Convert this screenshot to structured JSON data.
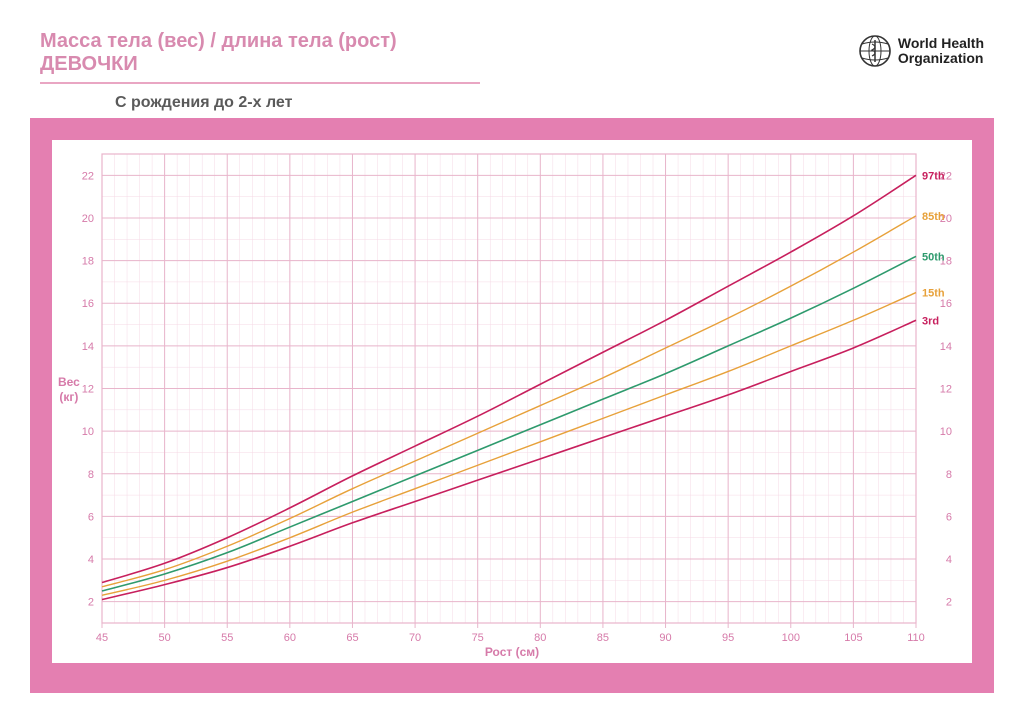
{
  "header": {
    "title": "Масса тела (вес) / длина тела (рост) ДЕВОЧКИ",
    "subtitle": "С рождения до 2-х лет",
    "org_line1": "World Health",
    "org_line2": "Organization"
  },
  "chart": {
    "type": "line",
    "background_color": "#ffffff",
    "frame_color": "#e47fb1",
    "grid_minor_color": "#f5d9e5",
    "grid_major_color": "#e8b5cb",
    "x": {
      "label": "Рост (см)",
      "min": 45,
      "max": 110,
      "major_step": 5,
      "minor_step": 1,
      "tick_color": "#d67aa9",
      "tick_fontsize": 11
    },
    "y": {
      "label_line1": "Вес",
      "label_line2": "(кг)",
      "min": 1,
      "max": 23,
      "major_step": 2,
      "major_start": 2,
      "minor_step": 1,
      "tick_color": "#d67aa9",
      "tick_fontsize": 11
    },
    "series": [
      {
        "name": "97th",
        "label": "97th",
        "color": "#c71f5d",
        "width": 1.6,
        "points": [
          [
            45,
            2.9
          ],
          [
            50,
            3.8
          ],
          [
            55,
            5.0
          ],
          [
            60,
            6.4
          ],
          [
            65,
            7.9
          ],
          [
            70,
            9.3
          ],
          [
            75,
            10.7
          ],
          [
            80,
            12.2
          ],
          [
            85,
            13.7
          ],
          [
            90,
            15.2
          ],
          [
            95,
            16.8
          ],
          [
            100,
            18.4
          ],
          [
            105,
            20.1
          ],
          [
            110,
            22.0
          ]
        ]
      },
      {
        "name": "85th",
        "label": "85th",
        "color": "#e7a13a",
        "width": 1.4,
        "points": [
          [
            45,
            2.7
          ],
          [
            50,
            3.5
          ],
          [
            55,
            4.6
          ],
          [
            60,
            5.9
          ],
          [
            65,
            7.3
          ],
          [
            70,
            8.6
          ],
          [
            75,
            9.9
          ],
          [
            80,
            11.2
          ],
          [
            85,
            12.5
          ],
          [
            90,
            13.9
          ],
          [
            95,
            15.3
          ],
          [
            100,
            16.8
          ],
          [
            105,
            18.4
          ],
          [
            110,
            20.1
          ]
        ]
      },
      {
        "name": "50th",
        "label": "50th",
        "color": "#2e9a6d",
        "width": 1.6,
        "points": [
          [
            45,
            2.5
          ],
          [
            50,
            3.3
          ],
          [
            55,
            4.3
          ],
          [
            60,
            5.5
          ],
          [
            65,
            6.7
          ],
          [
            70,
            7.9
          ],
          [
            75,
            9.1
          ],
          [
            80,
            10.3
          ],
          [
            85,
            11.5
          ],
          [
            90,
            12.7
          ],
          [
            95,
            14.0
          ],
          [
            100,
            15.3
          ],
          [
            105,
            16.7
          ],
          [
            110,
            18.2
          ]
        ]
      },
      {
        "name": "15th",
        "label": "15th",
        "color": "#e7a13a",
        "width": 1.4,
        "points": [
          [
            45,
            2.3
          ],
          [
            50,
            3.0
          ],
          [
            55,
            3.9
          ],
          [
            60,
            5.0
          ],
          [
            65,
            6.2
          ],
          [
            70,
            7.3
          ],
          [
            75,
            8.4
          ],
          [
            80,
            9.5
          ],
          [
            85,
            10.6
          ],
          [
            90,
            11.7
          ],
          [
            95,
            12.8
          ],
          [
            100,
            14.0
          ],
          [
            105,
            15.2
          ],
          [
            110,
            16.5
          ]
        ]
      },
      {
        "name": "3rd",
        "label": "3rd",
        "color": "#c71f5d",
        "width": 1.6,
        "points": [
          [
            45,
            2.1
          ],
          [
            50,
            2.8
          ],
          [
            55,
            3.6
          ],
          [
            60,
            4.6
          ],
          [
            65,
            5.7
          ],
          [
            70,
            6.7
          ],
          [
            75,
            7.7
          ],
          [
            80,
            8.7
          ],
          [
            85,
            9.7
          ],
          [
            90,
            10.7
          ],
          [
            95,
            11.7
          ],
          [
            100,
            12.8
          ],
          [
            105,
            13.9
          ],
          [
            110,
            15.2
          ]
        ]
      }
    ]
  }
}
